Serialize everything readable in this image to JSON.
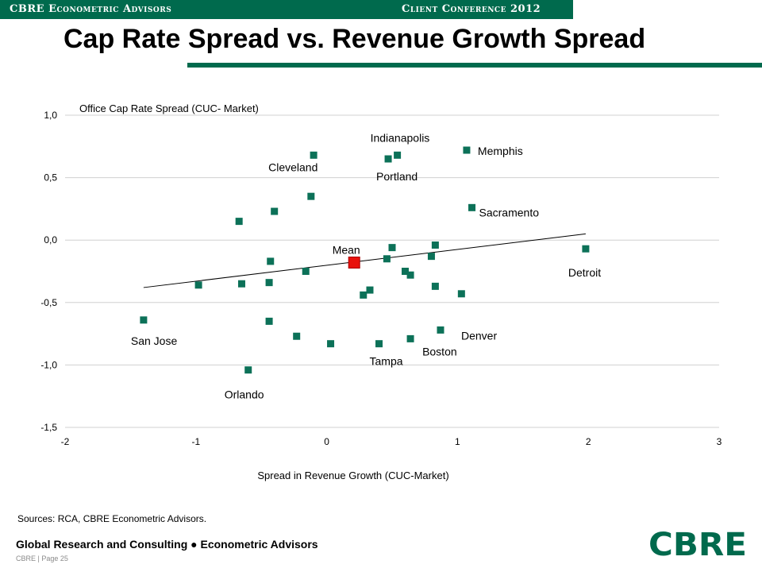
{
  "header": {
    "left": "CBRE Econometric Advisors",
    "right": "Client Conference 2012"
  },
  "title": "Cap Rate Spread vs. Revenue Growth Spread",
  "sources": "Sources: RCA, CBRE Econometric Advisors.",
  "footer": {
    "main": "Global Research and Consulting ● Econometric Advisors",
    "sub": "CBRE | Page 25"
  },
  "logo": "CBRE",
  "colors": {
    "brand": "#006a4d",
    "marker": "#0c7158",
    "mean": "#e8120c"
  },
  "chart_data": {
    "type": "scatter",
    "title": "",
    "xlabel": "Spread in Revenue Growth (CUC-Market)",
    "ylabel": "Office Cap Rate Spread (CUC- Market)",
    "xlim": [
      -2,
      3
    ],
    "ylim": [
      -1.5,
      1.0
    ],
    "x_ticks": [
      "-2",
      "-1",
      "0",
      "1",
      "2",
      "3"
    ],
    "y_ticks": [
      "1,0",
      "0,5",
      "0,0",
      "-0,5",
      "-1,0",
      "-1,5"
    ],
    "y_tick_values": [
      1.0,
      0.5,
      0.0,
      -0.5,
      -1.0,
      -1.5
    ],
    "grid": "horizontal",
    "points": [
      {
        "x": -1.4,
        "y": -0.64,
        "label": "San Jose"
      },
      {
        "x": -0.6,
        "y": -1.04,
        "label": "Orlando"
      },
      {
        "x": -0.1,
        "y": 0.68,
        "label": "Cleveland"
      },
      {
        "x": 0.47,
        "y": 0.65,
        "label": "Portland"
      },
      {
        "x": 0.54,
        "y": 0.68,
        "label": "Indianapolis"
      },
      {
        "x": 1.07,
        "y": 0.72,
        "label": "Memphis"
      },
      {
        "x": 1.11,
        "y": 0.26,
        "label": "Sacramento"
      },
      {
        "x": 1.98,
        "y": -0.07,
        "label": "Detroit"
      },
      {
        "x": 0.87,
        "y": -0.72,
        "label": "Denver"
      },
      {
        "x": 0.64,
        "y": -0.79,
        "label": "Boston"
      },
      {
        "x": 0.4,
        "y": -0.83,
        "label": "Tampa"
      },
      {
        "x": -0.67,
        "y": 0.15,
        "label": ""
      },
      {
        "x": -0.4,
        "y": 0.23,
        "label": ""
      },
      {
        "x": -0.12,
        "y": 0.35,
        "label": ""
      },
      {
        "x": -0.98,
        "y": -0.36,
        "label": ""
      },
      {
        "x": -0.65,
        "y": -0.35,
        "label": ""
      },
      {
        "x": -0.43,
        "y": -0.17,
        "label": ""
      },
      {
        "x": -0.44,
        "y": -0.34,
        "label": ""
      },
      {
        "x": -0.16,
        "y": -0.25,
        "label": ""
      },
      {
        "x": 0.28,
        "y": -0.44,
        "label": ""
      },
      {
        "x": 0.33,
        "y": -0.4,
        "label": ""
      },
      {
        "x": 0.46,
        "y": -0.15,
        "label": ""
      },
      {
        "x": 0.5,
        "y": -0.06,
        "label": ""
      },
      {
        "x": 0.6,
        "y": -0.25,
        "label": ""
      },
      {
        "x": 0.64,
        "y": -0.28,
        "label": ""
      },
      {
        "x": 0.8,
        "y": -0.13,
        "label": ""
      },
      {
        "x": 0.83,
        "y": -0.04,
        "label": ""
      },
      {
        "x": 0.83,
        "y": -0.37,
        "label": ""
      },
      {
        "x": 1.03,
        "y": -0.43,
        "label": ""
      },
      {
        "x": -0.44,
        "y": -0.65,
        "label": ""
      },
      {
        "x": -0.23,
        "y": -0.77,
        "label": ""
      },
      {
        "x": 0.03,
        "y": -0.83,
        "label": ""
      }
    ],
    "mean_point": {
      "x": 0.21,
      "y": -0.18,
      "label": "Mean"
    },
    "trendline": {
      "x": [
        -1.4,
        1.98
      ],
      "y": [
        -0.38,
        0.05
      ]
    }
  }
}
